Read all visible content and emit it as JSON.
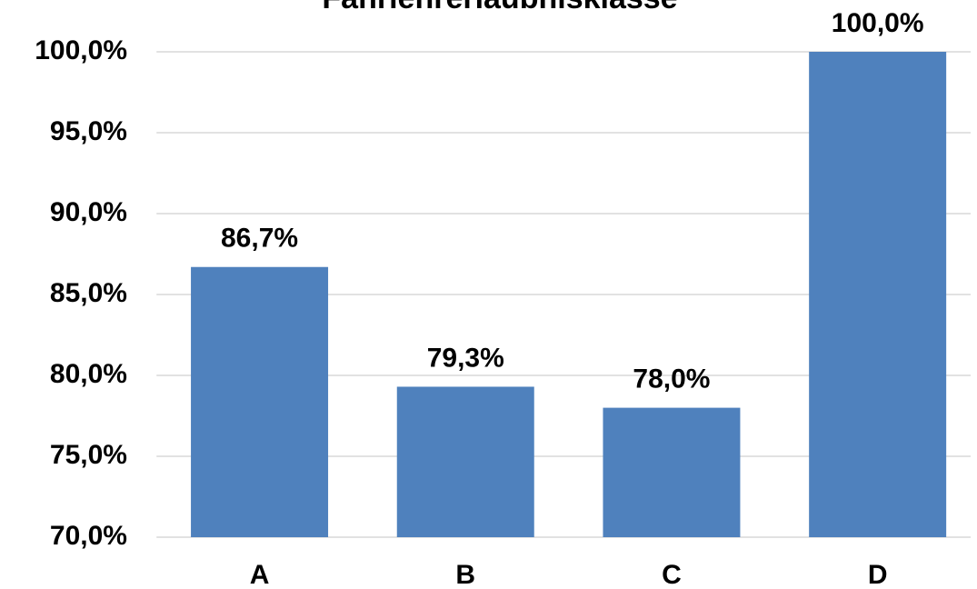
{
  "chart_data": {
    "type": "bar",
    "title": "Fahrlehrerlaubnisklasse",
    "categories": [
      "A",
      "B",
      "C",
      "D"
    ],
    "values": [
      86.7,
      79.3,
      78.0,
      100.0
    ],
    "value_labels": [
      "86,7%",
      "79,3%",
      "78,0%",
      "100,0%"
    ],
    "color": "#4f81bd",
    "ylim": [
      70,
      100
    ],
    "yticks": [
      {
        "value": 70,
        "label": "70,0%"
      },
      {
        "value": 75,
        "label": "75,0%"
      },
      {
        "value": 80,
        "label": "80,0%"
      },
      {
        "value": 85,
        "label": "85,0%"
      },
      {
        "value": 90,
        "label": "90,0%"
      },
      {
        "value": 95,
        "label": "95,0%"
      },
      {
        "value": 100,
        "label": "100,0%"
      }
    ],
    "grid": true
  }
}
